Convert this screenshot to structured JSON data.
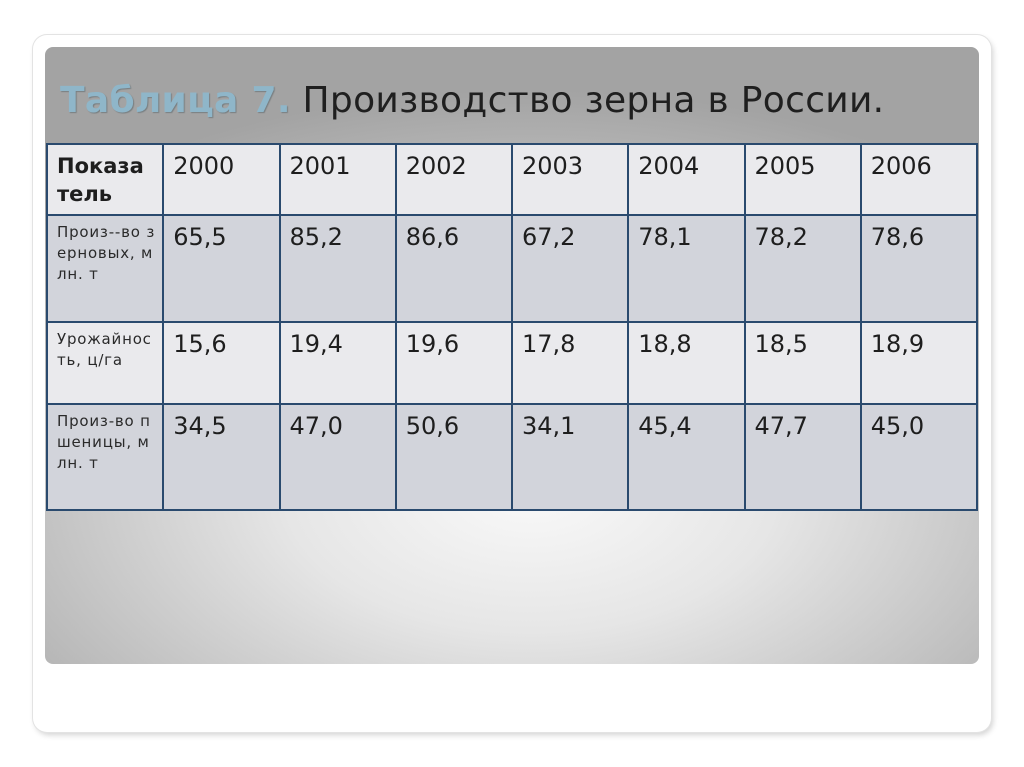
{
  "slide": {
    "title_label": "Таблица 7.",
    "title_text": " Производство зерна в России."
  },
  "table": {
    "corner_header": "Показатель",
    "years": [
      "2000",
      "2001",
      "2002",
      "2003",
      "2004",
      "2005",
      "2006"
    ],
    "rows": [
      {
        "label": "Произ--во зерновых, млн. т",
        "values": [
          "65,5",
          "85,2",
          "86,6",
          "67,2",
          "78,1",
          "78,2",
          "78,6"
        ]
      },
      {
        "label": "Урожайность, ц/га",
        "values": [
          "15,6",
          "19,4",
          "19,6",
          "17,8",
          "18,8",
          "18,5",
          "18,9"
        ]
      },
      {
        "label": "Произ-во пшеницы, млн. т",
        "values": [
          "34,5",
          "47,0",
          "50,6",
          "34,1",
          "45,4",
          "47,7",
          "45,0"
        ]
      }
    ]
  }
}
